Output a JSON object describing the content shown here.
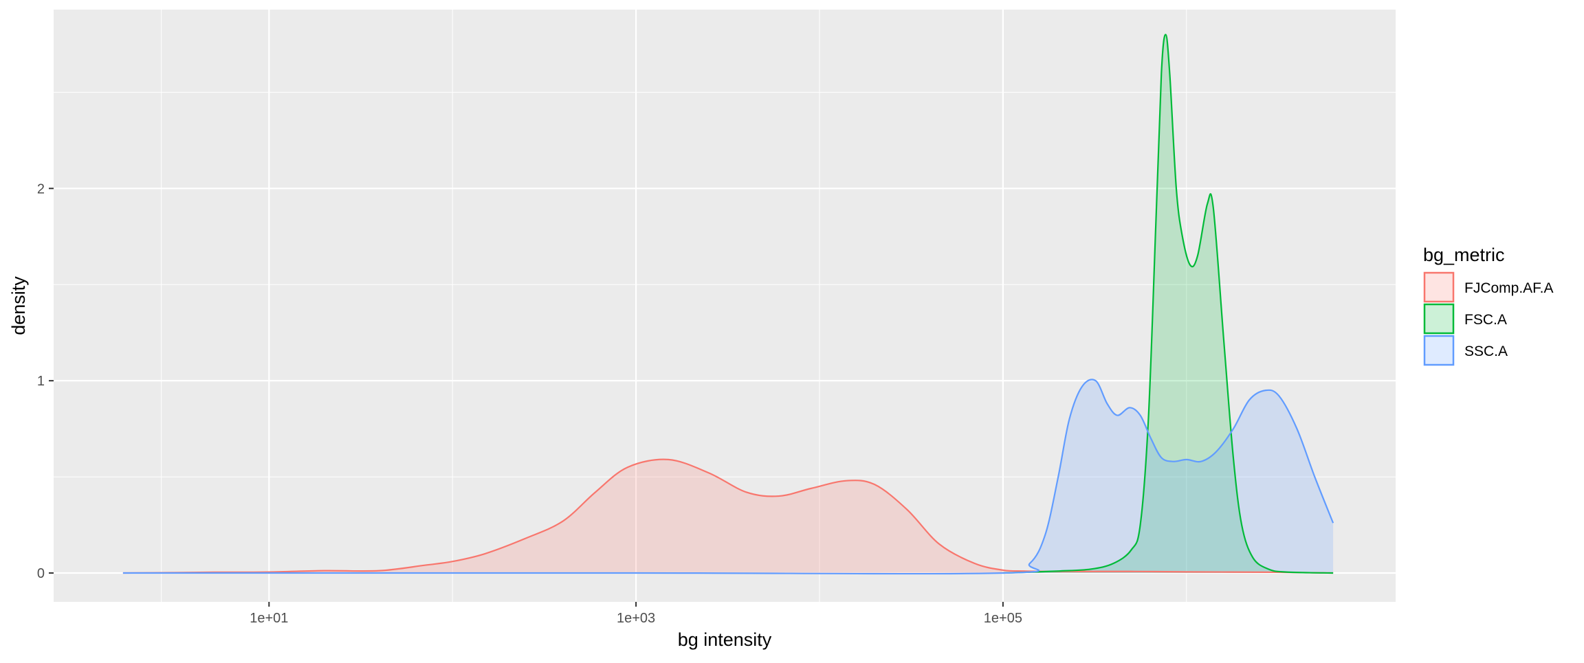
{
  "chart_data": {
    "type": "area",
    "title": "",
    "xlabel": "bg intensity",
    "ylabel": "density",
    "x_scale": "log10",
    "xlim": [
      0.67,
      13800000
    ],
    "ylim": [
      -0.15,
      2.93
    ],
    "x_ticks": [
      {
        "value": 10,
        "label": "1e+01"
      },
      {
        "value": 1000,
        "label": "1e+03"
      },
      {
        "value": 100000,
        "label": "1e+05"
      }
    ],
    "y_ticks": [
      {
        "value": 0,
        "label": "0"
      },
      {
        "value": 1,
        "label": "1"
      },
      {
        "value": 2,
        "label": "2"
      }
    ],
    "grid": true,
    "legend": {
      "title": "bg_metric",
      "position": "right"
    },
    "series": [
      {
        "name": "FJComp.AF.A",
        "color": "#F8766D",
        "fill": "rgba(248,118,109,0.2)",
        "points": [
          [
            1.6,
            0
          ],
          [
            3,
            0.002
          ],
          [
            5,
            0.004
          ],
          [
            10,
            0.005
          ],
          [
            20,
            0.012
          ],
          [
            40,
            0.012
          ],
          [
            70,
            0.04
          ],
          [
            100,
            0.06
          ],
          [
            150,
            0.1
          ],
          [
            250,
            0.18
          ],
          [
            400,
            0.27
          ],
          [
            600,
            0.42
          ],
          [
            900,
            0.55
          ],
          [
            1500,
            0.59
          ],
          [
            2500,
            0.52
          ],
          [
            4000,
            0.42
          ],
          [
            6000,
            0.4
          ],
          [
            9000,
            0.44
          ],
          [
            14000,
            0.48
          ],
          [
            20000,
            0.46
          ],
          [
            30000,
            0.33
          ],
          [
            45000,
            0.15
          ],
          [
            70000,
            0.05
          ],
          [
            100000,
            0.015
          ],
          [
            130000,
            0.01
          ],
          [
            200000,
            0.008
          ],
          [
            500000,
            0.008
          ],
          [
            1000000,
            0.006
          ],
          [
            3000000,
            0.004
          ],
          [
            6300000,
            0
          ]
        ]
      },
      {
        "name": "FSC.A",
        "color": "#00BA38",
        "fill": "rgba(0,186,56,0.2)",
        "points": [
          [
            100000,
            0
          ],
          [
            200000,
            0.01
          ],
          [
            300000,
            0.02
          ],
          [
            400000,
            0.05
          ],
          [
            500000,
            0.12
          ],
          [
            560000,
            0.25
          ],
          [
            620000,
            0.8
          ],
          [
            680000,
            1.8
          ],
          [
            730000,
            2.6
          ],
          [
            770000,
            2.8
          ],
          [
            810000,
            2.6
          ],
          [
            880000,
            2.0
          ],
          [
            950000,
            1.75
          ],
          [
            1050000,
            1.6
          ],
          [
            1150000,
            1.65
          ],
          [
            1300000,
            1.92
          ],
          [
            1400000,
            1.9
          ],
          [
            1600000,
            1.2
          ],
          [
            1800000,
            0.6
          ],
          [
            2000000,
            0.25
          ],
          [
            2300000,
            0.08
          ],
          [
            2800000,
            0.02
          ],
          [
            3500000,
            0.005
          ],
          [
            6300000,
            0
          ]
        ]
      },
      {
        "name": "SSC.A",
        "color": "#619CFF",
        "fill": "rgba(97,156,255,0.2)",
        "points": [
          [
            1.6,
            0
          ],
          [
            1000,
            0
          ],
          [
            100000,
            0
          ],
          [
            140000,
            0.05
          ],
          [
            170000,
            0.2
          ],
          [
            200000,
            0.5
          ],
          [
            230000,
            0.8
          ],
          [
            270000,
            0.97
          ],
          [
            320000,
            1.0
          ],
          [
            370000,
            0.88
          ],
          [
            420000,
            0.82
          ],
          [
            490000,
            0.86
          ],
          [
            560000,
            0.82
          ],
          [
            640000,
            0.7
          ],
          [
            730000,
            0.6
          ],
          [
            850000,
            0.58
          ],
          [
            1000000,
            0.59
          ],
          [
            1200000,
            0.58
          ],
          [
            1450000,
            0.63
          ],
          [
            1800000,
            0.75
          ],
          [
            2200000,
            0.9
          ],
          [
            2700000,
            0.95
          ],
          [
            3200000,
            0.92
          ],
          [
            4000000,
            0.75
          ],
          [
            5000000,
            0.5
          ],
          [
            6300000,
            0.26
          ]
        ]
      }
    ]
  }
}
